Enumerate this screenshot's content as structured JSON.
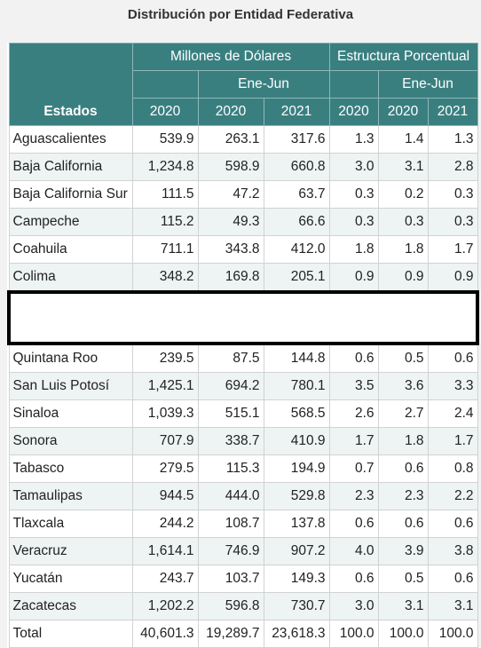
{
  "title": "Distribución por Entidad Federativa",
  "header": {
    "group_millions": "Millones de Dólares",
    "group_percent": "Estructura Porcentual",
    "period": "Ene-Jun",
    "estados": "Estados",
    "years": [
      "2020",
      "2020",
      "2021",
      "2020",
      "2020",
      "2021"
    ]
  },
  "rows_top": [
    {
      "state": "Aguascalientes",
      "v": [
        "539.9",
        "263.1",
        "317.6",
        "1.3",
        "1.4",
        "1.3"
      ]
    },
    {
      "state": "Baja California",
      "v": [
        "1,234.8",
        "598.9",
        "660.8",
        "3.0",
        "3.1",
        "2.8"
      ]
    },
    {
      "state": "Baja California Sur",
      "v": [
        "111.5",
        "47.2",
        "63.7",
        "0.3",
        "0.2",
        "0.3"
      ]
    },
    {
      "state": "Campeche",
      "v": [
        "115.2",
        "49.3",
        "66.6",
        "0.3",
        "0.3",
        "0.3"
      ]
    },
    {
      "state": "Coahuila",
      "v": [
        "711.1",
        "343.8",
        "412.0",
        "1.8",
        "1.8",
        "1.7"
      ]
    },
    {
      "state": "Colima",
      "v": [
        "348.2",
        "169.8",
        "205.1",
        "0.9",
        "0.9",
        "0.9"
      ]
    }
  ],
  "rows_bottom": [
    {
      "state": "Quintana Roo",
      "v": [
        "239.5",
        "87.5",
        "144.8",
        "0.6",
        "0.5",
        "0.6"
      ]
    },
    {
      "state": "San Luis Potosí",
      "v": [
        "1,425.1",
        "694.2",
        "780.1",
        "3.5",
        "3.6",
        "3.3"
      ]
    },
    {
      "state": "Sinaloa",
      "v": [
        "1,039.3",
        "515.1",
        "568.5",
        "2.6",
        "2.7",
        "2.4"
      ]
    },
    {
      "state": "Sonora",
      "v": [
        "707.9",
        "338.7",
        "410.9",
        "1.7",
        "1.8",
        "1.7"
      ]
    },
    {
      "state": "Tabasco",
      "v": [
        "279.5",
        "115.3",
        "194.9",
        "0.7",
        "0.6",
        "0.8"
      ]
    },
    {
      "state": "Tamaulipas",
      "v": [
        "944.5",
        "444.0",
        "529.8",
        "2.3",
        "2.3",
        "2.2"
      ]
    },
    {
      "state": "Tlaxcala",
      "v": [
        "244.2",
        "108.7",
        "137.8",
        "0.6",
        "0.6",
        "0.6"
      ]
    },
    {
      "state": "Veracruz",
      "v": [
        "1,614.1",
        "746.9",
        "907.2",
        "4.0",
        "3.9",
        "3.8"
      ]
    },
    {
      "state": "Yucatán",
      "v": [
        "243.7",
        "103.7",
        "149.3",
        "0.6",
        "0.5",
        "0.6"
      ]
    },
    {
      "state": "Zacatecas",
      "v": [
        "1,202.2",
        "596.8",
        "730.7",
        "3.0",
        "3.1",
        "3.1"
      ]
    }
  ],
  "total": {
    "state": "Total",
    "v": [
      "40,601.3",
      "19,289.7",
      "23,618.3",
      "100.0",
      "100.0",
      "100.0"
    ]
  }
}
